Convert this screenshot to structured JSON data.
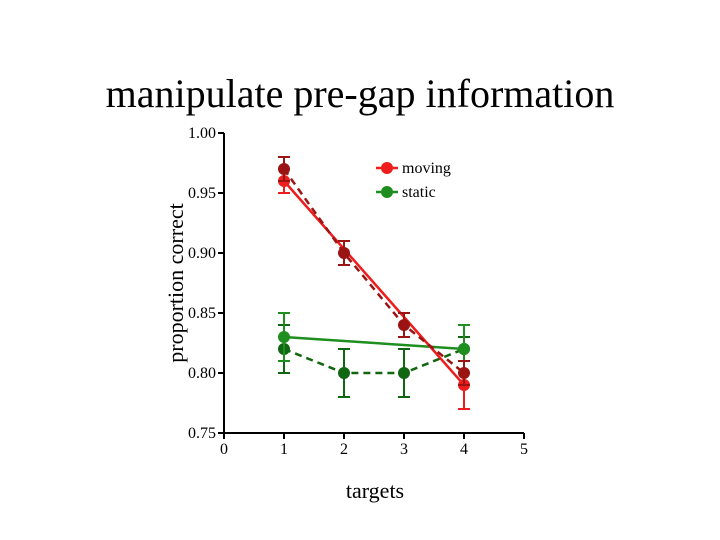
{
  "slide": {
    "title": "manipulate pre-gap information"
  },
  "chart_data": {
    "type": "line",
    "title": "",
    "xlabel": "targets",
    "ylabel": "proportion correct",
    "xlim": [
      0,
      5
    ],
    "ylim": [
      0.75,
      1.0
    ],
    "x_ticks": [
      "0",
      "1",
      "2",
      "3",
      "4",
      "5"
    ],
    "y_ticks": [
      "0.75",
      "0.80",
      "0.85",
      "0.90",
      "0.95",
      "1.00"
    ],
    "legend": {
      "position": "top-right",
      "entries": [
        "moving",
        "static"
      ]
    },
    "series": [
      {
        "name": "moving",
        "legend": true,
        "color": "#ee1c1c",
        "style": "solid",
        "x": [
          1,
          4
        ],
        "y": [
          0.96,
          0.79
        ],
        "errors": [
          0.01,
          0.02
        ],
        "fit": {
          "x": [
            1,
            4
          ],
          "y": [
            0.96,
            0.79
          ]
        }
      },
      {
        "name": "moving-dark",
        "legend": false,
        "color": "#9b1414",
        "style": "dashed",
        "x": [
          1,
          2,
          3,
          4
        ],
        "y": [
          0.97,
          0.9,
          0.84,
          0.8
        ],
        "errors": [
          0.01,
          0.01,
          0.01,
          0.01
        ]
      },
      {
        "name": "static",
        "legend": true,
        "color": "#1e8e1e",
        "style": "solid",
        "x": [
          1,
          4
        ],
        "y": [
          0.83,
          0.82
        ],
        "errors": [
          0.02,
          0.02
        ],
        "fit": {
          "x": [
            1,
            4
          ],
          "y": [
            0.83,
            0.82
          ]
        }
      },
      {
        "name": "static-dark",
        "legend": false,
        "color": "#116611",
        "style": "dashed",
        "x": [
          1,
          2,
          3,
          4
        ],
        "y": [
          0.82,
          0.8,
          0.8,
          0.82
        ],
        "errors": [
          0.02,
          0.02,
          0.02,
          0.01
        ]
      }
    ]
  }
}
